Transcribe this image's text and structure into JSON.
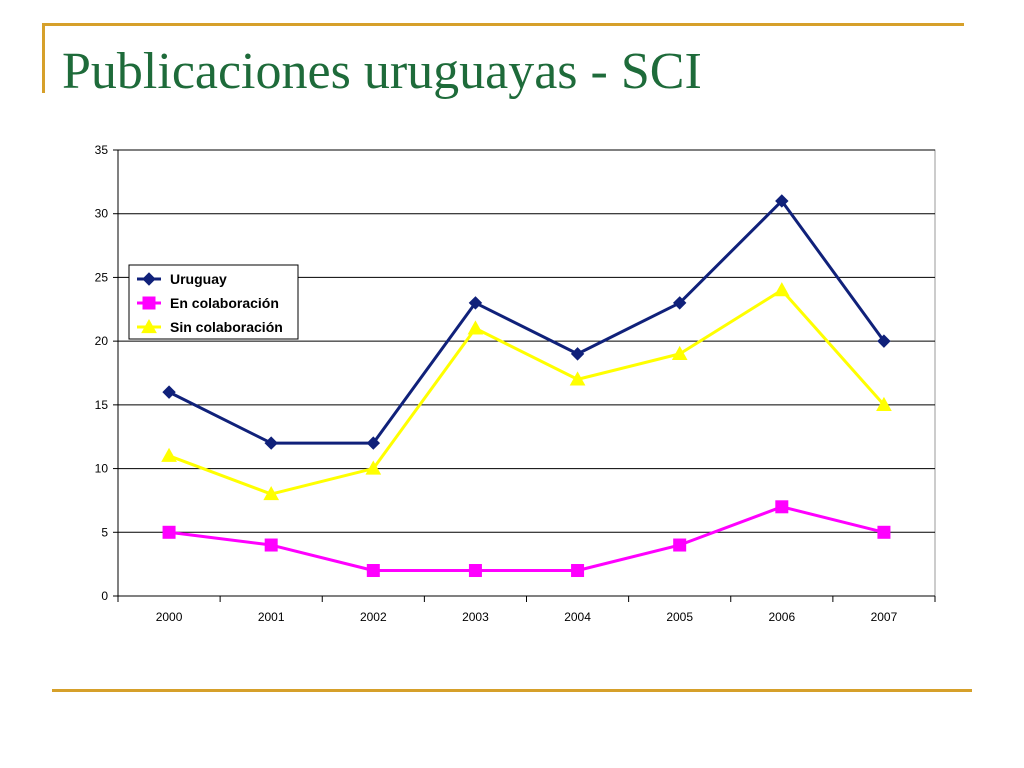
{
  "slide": {
    "title": "Publicaciones uruguayas - SCI"
  },
  "colors": {
    "accent_rule": "#d6a02a",
    "title": "#1e6b3a",
    "grid": "#000000"
  },
  "chart_data": {
    "type": "line",
    "title": "",
    "xlabel": "",
    "ylabel": "",
    "categories": [
      "2000",
      "2001",
      "2002",
      "2003",
      "2004",
      "2005",
      "2006",
      "2007"
    ],
    "ylim": [
      0,
      35
    ],
    "yticks": [
      0,
      5,
      10,
      15,
      20,
      25,
      30,
      35
    ],
    "grid": true,
    "legend_position": "left",
    "series": [
      {
        "name": "Uruguay",
        "color": "#10217a",
        "marker": "diamond",
        "values": [
          16,
          12,
          12,
          23,
          19,
          23,
          31,
          20
        ]
      },
      {
        "name": "En colaboración",
        "color": "#ff00ff",
        "marker": "square",
        "values": [
          5,
          4,
          2,
          2,
          2,
          4,
          7,
          5
        ]
      },
      {
        "name": "Sin colaboración",
        "color": "#ffff00",
        "marker": "triangle",
        "values": [
          11,
          8,
          10,
          21,
          17,
          19,
          24,
          15
        ]
      }
    ]
  }
}
